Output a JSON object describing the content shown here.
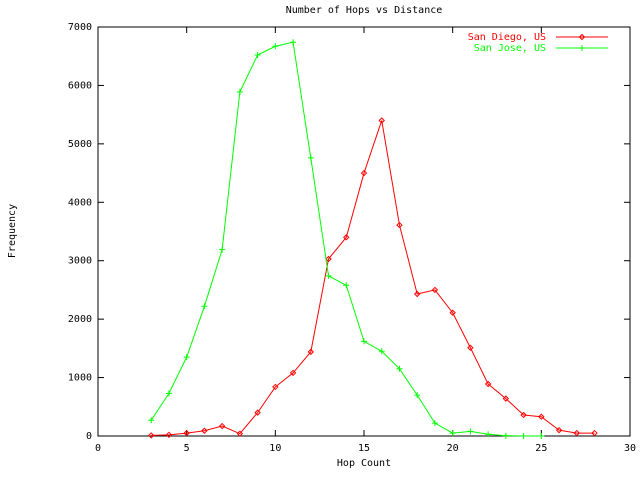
{
  "chart_data": {
    "type": "line",
    "title": "Number of Hops vs Distance",
    "xlabel": "Hop Count",
    "ylabel": "Frequency",
    "xlim": [
      0,
      30
    ],
    "xticks": [
      0,
      5,
      10,
      15,
      20,
      25,
      30
    ],
    "ylim": [
      0,
      7000
    ],
    "yticks": [
      0,
      1000,
      2000,
      3000,
      4000,
      5000,
      6000,
      7000
    ],
    "legend": "top-right",
    "series": [
      {
        "name": "San Diego, US",
        "color": "#ff0000",
        "marker": "diamond",
        "x": [
          3,
          4,
          5,
          6,
          7,
          8,
          9,
          10,
          11,
          12,
          13,
          14,
          15,
          16,
          17,
          18,
          19,
          20,
          21,
          22,
          23,
          24,
          25,
          26,
          27,
          28
        ],
        "values": [
          10,
          20,
          50,
          90,
          170,
          40,
          400,
          840,
          1080,
          1440,
          3030,
          3400,
          4500,
          5400,
          3610,
          2430,
          2500,
          2110,
          1510,
          890,
          640,
          360,
          330,
          100,
          50,
          50
        ]
      },
      {
        "name": "San Jose, US",
        "color": "#00ff00",
        "marker": "plus",
        "x": [
          3,
          4,
          5,
          6,
          7,
          8,
          9,
          10,
          11,
          12,
          13,
          14,
          15,
          16,
          17,
          18,
          19,
          20,
          21,
          22,
          23,
          24,
          25
        ],
        "values": [
          270,
          730,
          1350,
          2220,
          3190,
          5890,
          6520,
          6670,
          6740,
          4760,
          2740,
          2580,
          1620,
          1450,
          1150,
          700,
          220,
          50,
          80,
          30,
          5,
          0,
          0
        ]
      }
    ]
  }
}
